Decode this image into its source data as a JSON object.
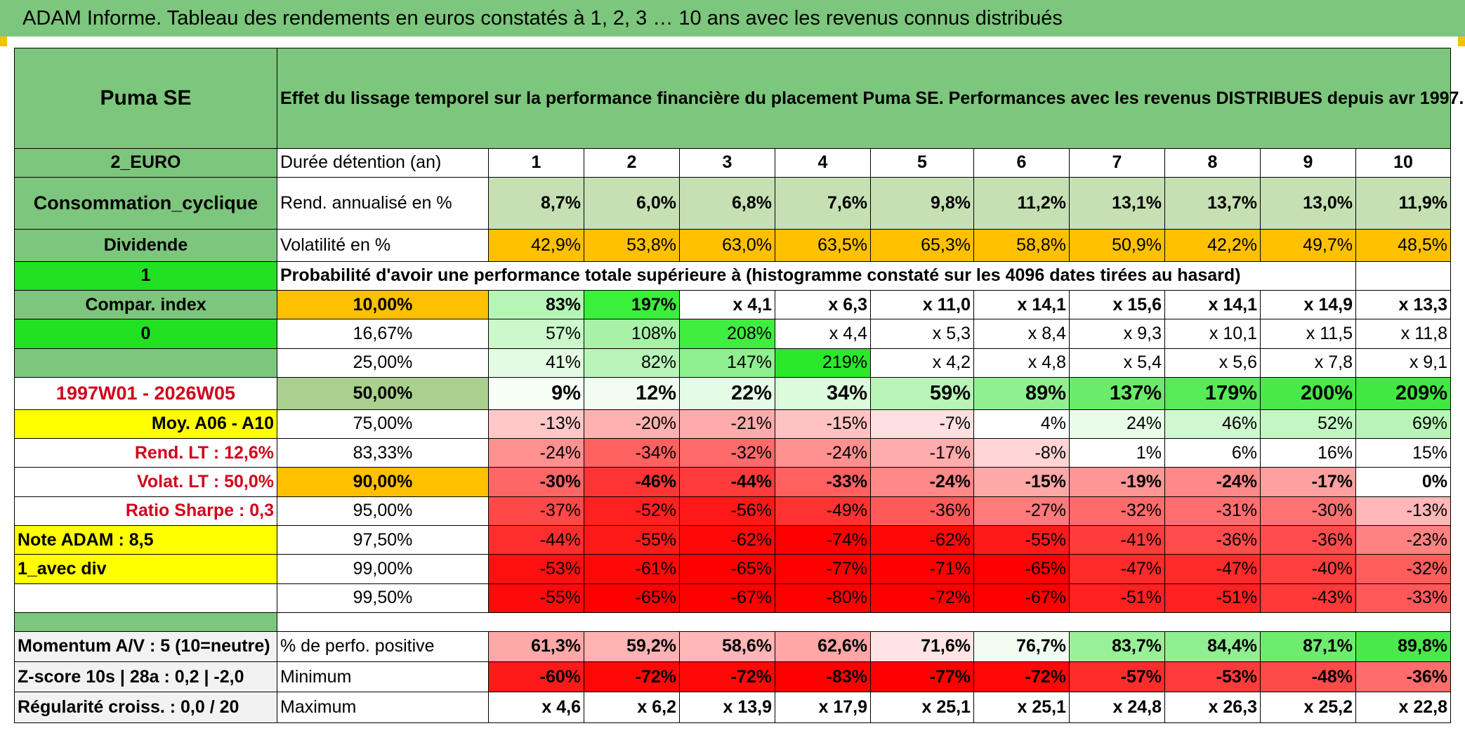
{
  "banner": "ADAM Informe. Tableau des rendements en euros constatés à 1, 2, 3 … 10 ans avec les revenus connus distribués",
  "header": {
    "asset": "Puma SE",
    "title": "Effet du lissage temporel sur la performance financière du placement Puma SE. Performances avec les revenus DISTRIBUES depuis avr 1997."
  },
  "left": {
    "currency": "2_EURO",
    "sector": "Consommation_cyclique",
    "dividend": "Dividende",
    "one": "1",
    "compar": "Compar. index",
    "zero": "0",
    "period": "1997W01 - 2026W05",
    "moy": "Moy. A06 - A10",
    "rend_lt": "Rend. LT :    12,6%",
    "volat_lt": "Volat. LT :    50,0%",
    "sharpe": "Ratio Sharpe :    0,3",
    "note": "Note ADAM : 8,5",
    "avec_div": "1_avec div",
    "momentum": "Momentum A/V : 5 (10=neutre)",
    "zscore": "Z-score 10s | 28a : 0,2 | -2,0",
    "regularite": "Régularité croiss. : 0,0 / 20"
  },
  "rows": {
    "duree": "Durée détention (an)",
    "years": [
      "1",
      "2",
      "3",
      "4",
      "5",
      "6",
      "7",
      "8",
      "9",
      "10"
    ],
    "rend_label": "Rend. annualisé en %",
    "rend": [
      "8,7%",
      "6,0%",
      "6,8%",
      "7,6%",
      "9,8%",
      "11,2%",
      "13,1%",
      "13,7%",
      "13,0%",
      "11,9%"
    ],
    "vol_label": "Volatilité en %",
    "vol": [
      "42,9%",
      "53,8%",
      "63,0%",
      "63,5%",
      "65,3%",
      "58,8%",
      "50,9%",
      "42,2%",
      "49,7%",
      "48,5%"
    ],
    "prob_label": "Probabilité d'avoir une performance totale supérieure à (histogramme constaté sur les 4096 dates tirées au hasard)"
  },
  "prob_rows": [
    {
      "p": "10,00%",
      "v": [
        "83%",
        "197%",
        "x 4,1",
        "x 6,3",
        "x 11,0",
        "x 14,1",
        "x 15,6",
        "x 14,1",
        "x 14,9",
        "x 13,3"
      ]
    },
    {
      "p": "16,67%",
      "v": [
        "57%",
        "108%",
        "208%",
        "x 4,4",
        "x 5,3",
        "x 8,4",
        "x 9,3",
        "x 10,1",
        "x 11,5",
        "x 11,8"
      ]
    },
    {
      "p": "25,00%",
      "v": [
        "41%",
        "82%",
        "147%",
        "219%",
        "x 4,2",
        "x 4,8",
        "x 5,4",
        "x 5,6",
        "x 7,8",
        "x 9,1"
      ]
    },
    {
      "p": "50,00%",
      "v": [
        "9%",
        "12%",
        "22%",
        "34%",
        "59%",
        "89%",
        "137%",
        "179%",
        "200%",
        "209%"
      ]
    },
    {
      "p": "75,00%",
      "v": [
        "-13%",
        "-20%",
        "-21%",
        "-15%",
        "-7%",
        "4%",
        "24%",
        "46%",
        "52%",
        "69%"
      ]
    },
    {
      "p": "83,33%",
      "v": [
        "-24%",
        "-34%",
        "-32%",
        "-24%",
        "-17%",
        "-8%",
        "1%",
        "6%",
        "16%",
        "15%"
      ]
    },
    {
      "p": "90,00%",
      "v": [
        "-30%",
        "-46%",
        "-44%",
        "-33%",
        "-24%",
        "-15%",
        "-19%",
        "-24%",
        "-17%",
        "0%"
      ]
    },
    {
      "p": "95,00%",
      "v": [
        "-37%",
        "-52%",
        "-56%",
        "-49%",
        "-36%",
        "-27%",
        "-32%",
        "-31%",
        "-30%",
        "-13%"
      ]
    },
    {
      "p": "97,50%",
      "v": [
        "-44%",
        "-55%",
        "-62%",
        "-74%",
        "-62%",
        "-55%",
        "-41%",
        "-36%",
        "-36%",
        "-23%"
      ]
    },
    {
      "p": "99,00%",
      "v": [
        "-53%",
        "-61%",
        "-65%",
        "-77%",
        "-71%",
        "-65%",
        "-47%",
        "-47%",
        "-40%",
        "-32%"
      ]
    },
    {
      "p": "99,50%",
      "v": [
        "-55%",
        "-65%",
        "-67%",
        "-80%",
        "-72%",
        "-67%",
        "-51%",
        "-51%",
        "-43%",
        "-33%"
      ]
    }
  ],
  "bottom": {
    "pos_label": "% de perfo. positive",
    "pos": [
      "61,3%",
      "59,2%",
      "58,6%",
      "62,6%",
      "71,6%",
      "76,7%",
      "83,7%",
      "84,4%",
      "87,1%",
      "89,8%"
    ],
    "min_label": "Minimum",
    "min": [
      "-60%",
      "-72%",
      "-72%",
      "-83%",
      "-77%",
      "-72%",
      "-57%",
      "-53%",
      "-48%",
      "-36%"
    ],
    "max_label": "Maximum",
    "max": [
      "x 4,6",
      "x 6,2",
      "x 13,9",
      "x 17,9",
      "x 25,1",
      "x 25,1",
      "x 24,8",
      "x 26,3",
      "x 25,2",
      "x 22,8"
    ]
  },
  "colors": {
    "header_green": "#7dc67d",
    "bright_green": "#22e022",
    "orange": "#ffc000",
    "yellow": "#ffff00",
    "red_text": "#d0021b"
  }
}
